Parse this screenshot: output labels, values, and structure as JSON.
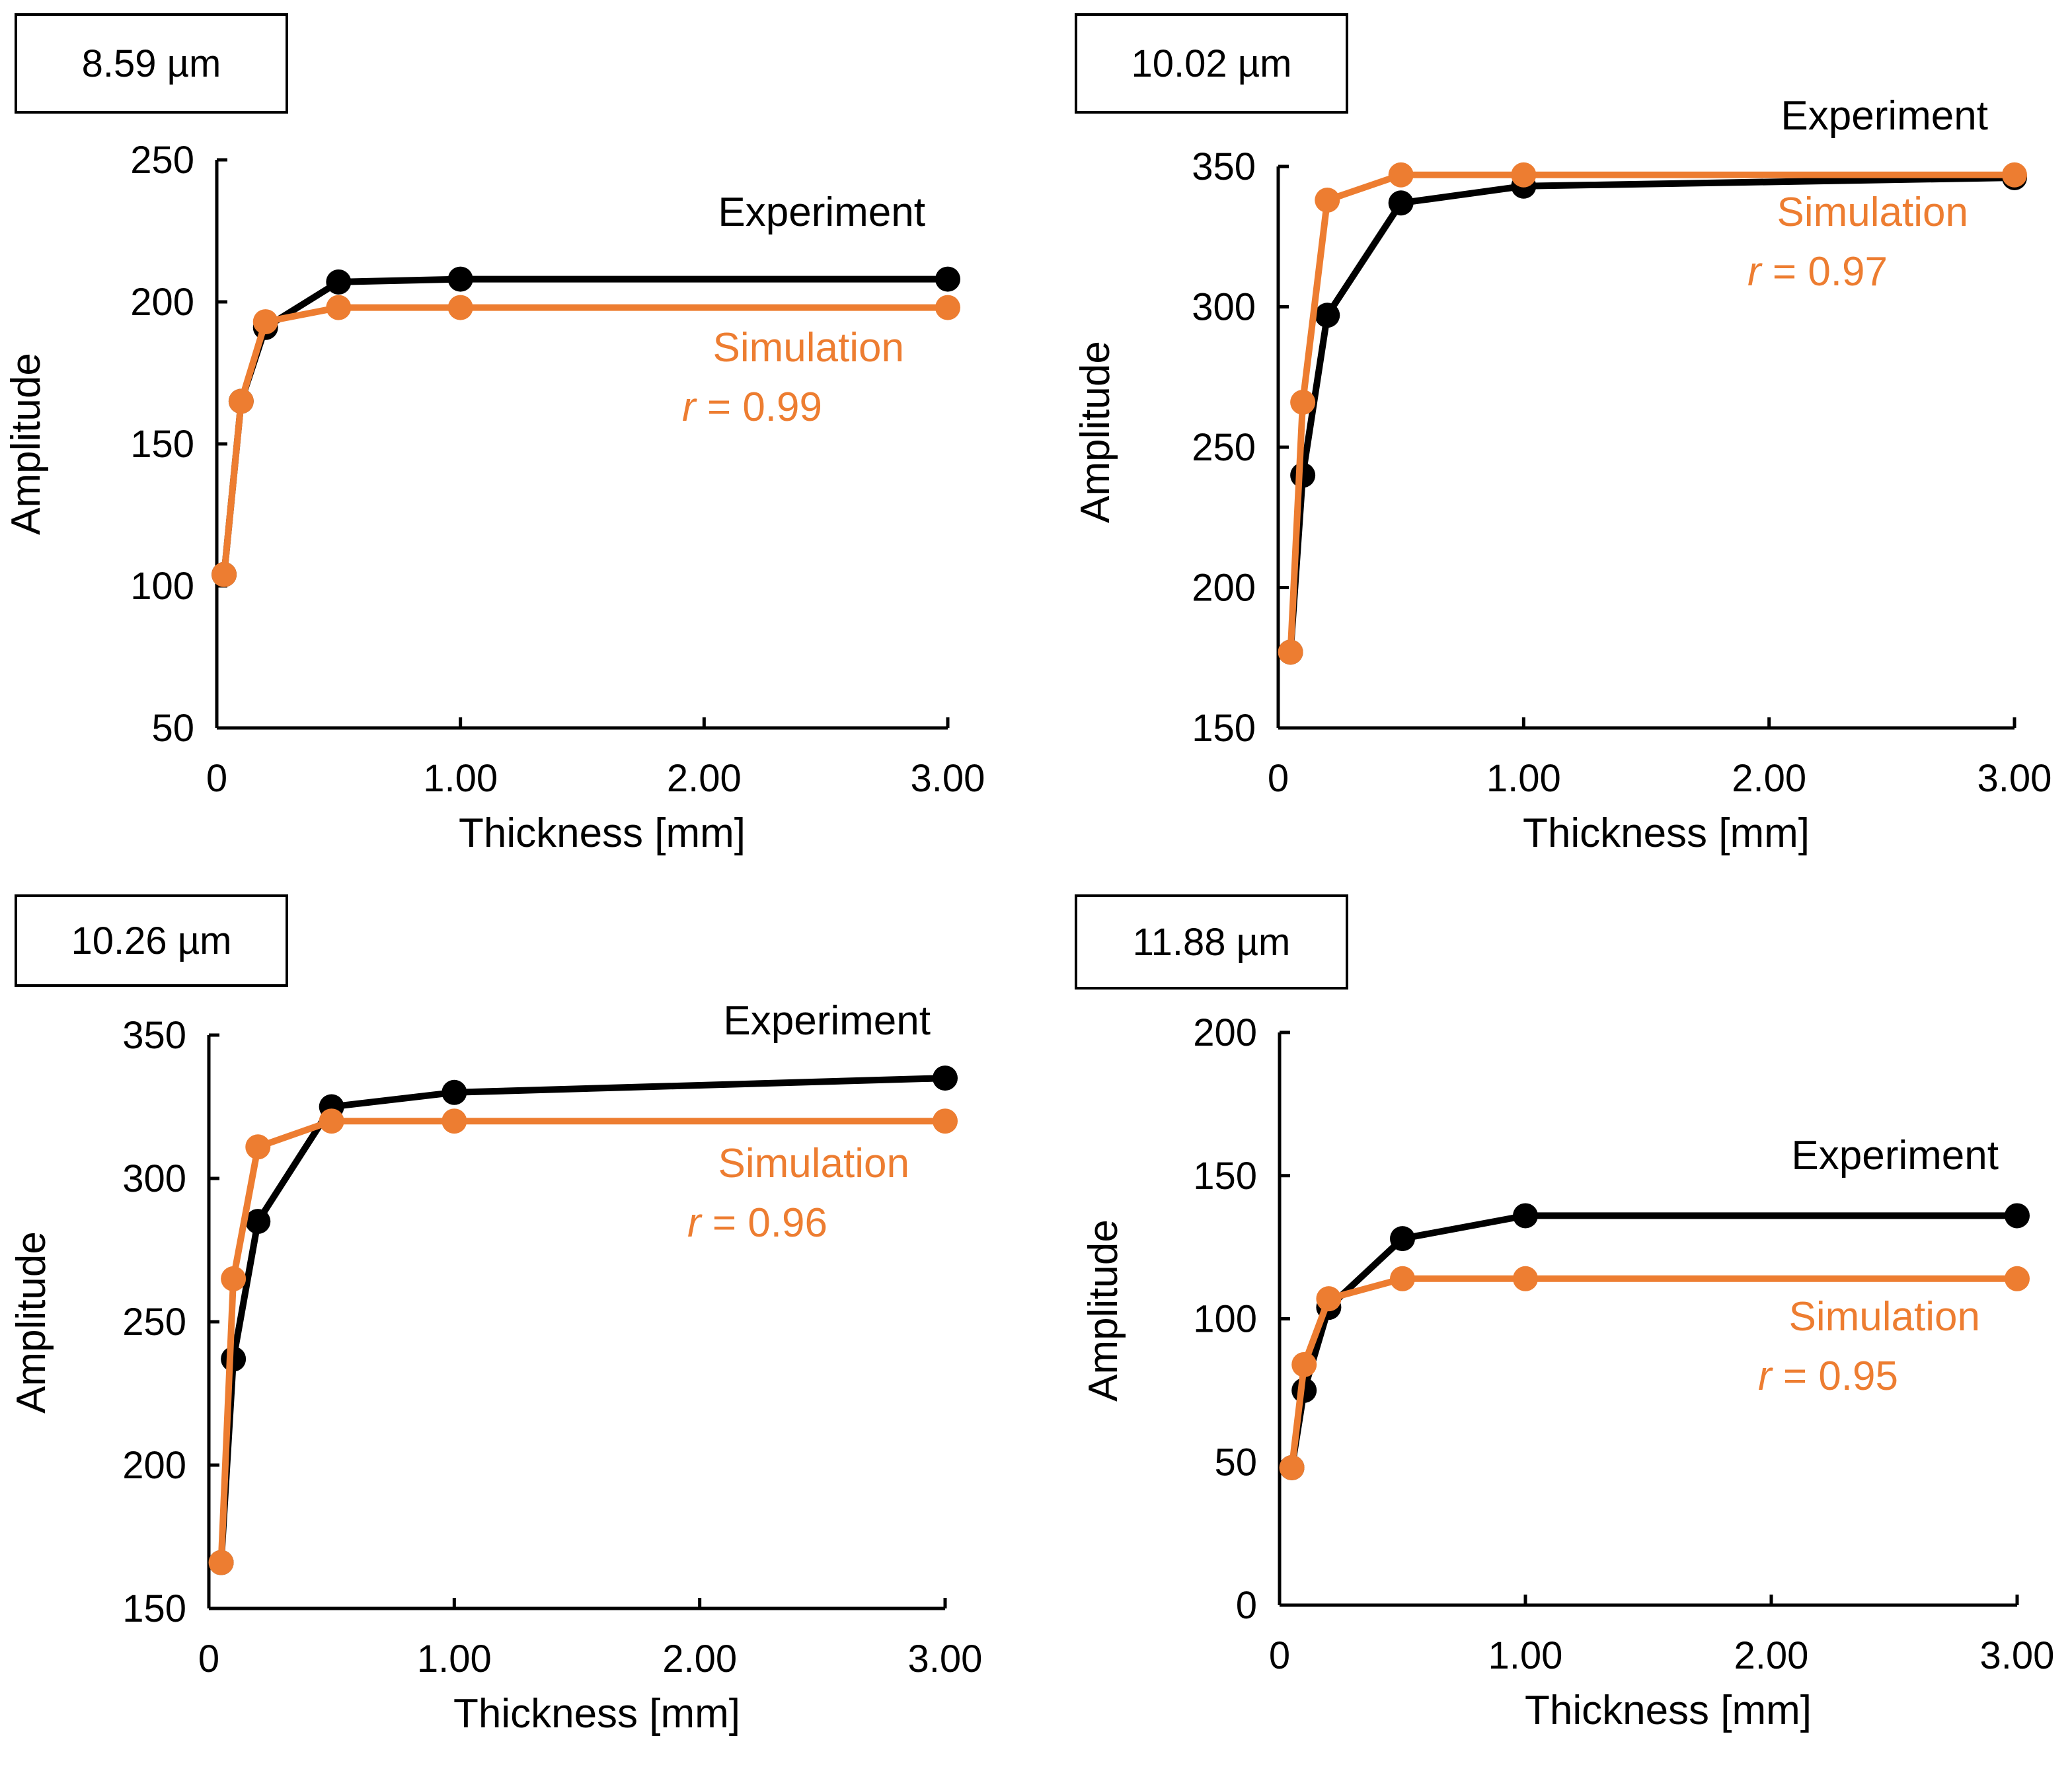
{
  "colors": {
    "experiment": "#000000",
    "simulation": "#ED7D31",
    "axis": "#000000"
  },
  "chart_data": [
    {
      "type": "line",
      "title": "8.59 µm",
      "xlabel": "Thickness [mm]",
      "ylabel": "Amplitude",
      "x_tick_labels": [
        "0",
        "1.00",
        "2.00",
        "3.00"
      ],
      "y_ticks": [
        50,
        100,
        150,
        200,
        250
      ],
      "ylim": [
        50,
        250
      ],
      "series": [
        {
          "name": "Experiment",
          "x": [
            0.03,
            0.1,
            0.2,
            0.5,
            1.0,
            3.0
          ],
          "values": [
            104,
            165,
            191,
            207,
            208,
            208
          ]
        },
        {
          "name": "Simulation",
          "x": [
            0.03,
            0.1,
            0.2,
            0.5,
            1.0,
            3.0
          ],
          "values": [
            104,
            165,
            193,
            198,
            198,
            198
          ]
        }
      ],
      "legend": {
        "experiment_label": "Experiment",
        "simulation_label": "Simulation",
        "r_symbol": "r",
        "r_text": " = 0.99"
      }
    },
    {
      "type": "line",
      "title": "10.02 µm",
      "xlabel": "Thickness [mm]",
      "ylabel": "Amplitude",
      "x_tick_labels": [
        "0",
        "1.00",
        "2.00",
        "3.00"
      ],
      "y_ticks": [
        150,
        200,
        250,
        300,
        350
      ],
      "ylim": [
        150,
        350
      ],
      "series": [
        {
          "name": "Experiment",
          "x": [
            0.05,
            0.1,
            0.2,
            0.5,
            1.0,
            3.0
          ],
          "values": [
            177,
            240,
            297,
            337,
            343,
            346
          ]
        },
        {
          "name": "Simulation",
          "x": [
            0.05,
            0.1,
            0.2,
            0.5,
            1.0,
            3.0
          ],
          "values": [
            177,
            266,
            338,
            347,
            347,
            347
          ]
        }
      ],
      "legend": {
        "experiment_label": "Experiment",
        "simulation_label": "Simulation",
        "r_symbol": "r",
        "r_text": " = 0.97"
      }
    },
    {
      "type": "line",
      "title": "10.26 µm",
      "xlabel": "Thickness [mm]",
      "ylabel": "Amplitude",
      "x_tick_labels": [
        "0",
        "1.00",
        "2.00",
        "3.00"
      ],
      "y_ticks": [
        150,
        200,
        250,
        300,
        350
      ],
      "ylim": [
        150,
        350
      ],
      "series": [
        {
          "name": "Experiment",
          "x": [
            0.05,
            0.1,
            0.2,
            0.5,
            1.0,
            3.0
          ],
          "values": [
            166,
            237,
            285,
            325,
            330,
            335
          ]
        },
        {
          "name": "Simulation",
          "x": [
            0.05,
            0.1,
            0.2,
            0.5,
            1.0,
            3.0
          ],
          "values": [
            166,
            265,
            311,
            320,
            320,
            320
          ]
        }
      ],
      "legend": {
        "experiment_label": "Experiment",
        "simulation_label": "Simulation",
        "r_symbol": "r",
        "r_text": " = 0.96"
      }
    },
    {
      "type": "line",
      "title": "11.88 µm",
      "xlabel": "Thickness [mm]",
      "ylabel": "Amplitude",
      "x_tick_labels": [
        "0",
        "1.00",
        "2.00",
        "3.00"
      ],
      "y_ticks": [
        0,
        50,
        100,
        150,
        200
      ],
      "ylim": [
        0,
        200
      ],
      "series": [
        {
          "name": "Experiment",
          "x": [
            0.05,
            0.1,
            0.2,
            0.5,
            1.0,
            3.0
          ],
          "values": [
            48,
            75,
            104,
            128,
            136,
            136
          ]
        },
        {
          "name": "Simulation",
          "x": [
            0.05,
            0.1,
            0.2,
            0.5,
            1.0,
            3.0
          ],
          "values": [
            48,
            84,
            107,
            114,
            114,
            114
          ]
        }
      ],
      "legend": {
        "experiment_label": "Experiment",
        "simulation_label": "Simulation",
        "r_symbol": "r",
        "r_text": " = 0.95"
      }
    }
  ]
}
